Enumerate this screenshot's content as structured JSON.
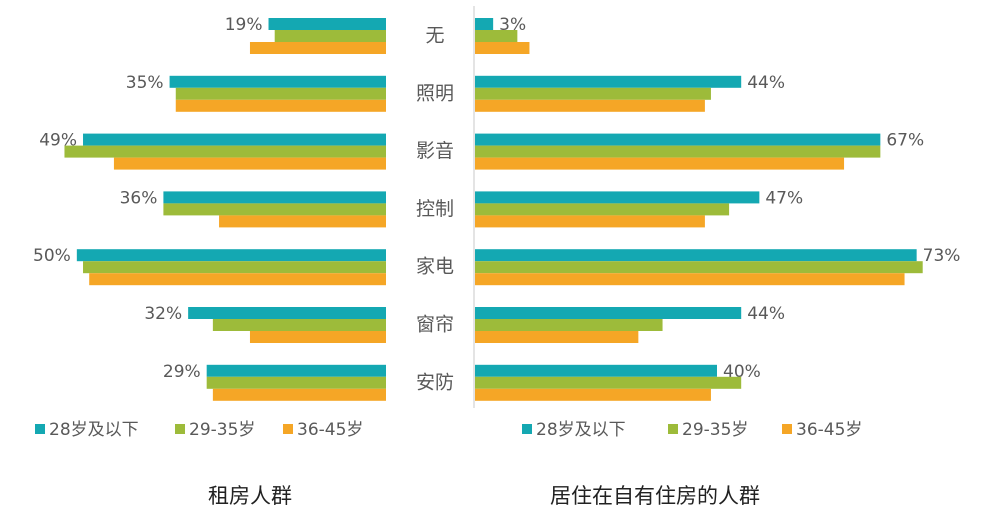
{
  "chart_data": {
    "type": "butterfly-bar",
    "categories": [
      "无",
      "照明",
      "影音",
      "控制",
      "家电",
      "窗帘",
      "安防"
    ],
    "panels": [
      {
        "title": "租房人群",
        "xlim": [
          0,
          60
        ],
        "series": [
          {
            "name": "28岁及以下",
            "color": "#14a8b2",
            "values": [
              19,
              35,
              49,
              36,
              50,
              32,
              29
            ],
            "value_labels": [
              "19%",
              "35%",
              "49%",
              "36%",
              "50%",
              "32%",
              "29%"
            ]
          },
          {
            "name": "29-35岁",
            "color": "#9dbb3a",
            "values": [
              18,
              34,
              52,
              36,
              49,
              28,
              29
            ]
          },
          {
            "name": "36-45岁",
            "color": "#f5a626",
            "values": [
              22,
              34,
              44,
              27,
              48,
              22,
              28
            ]
          }
        ]
      },
      {
        "title": "居住在自有住房的人群",
        "xlim": [
          0,
          80
        ],
        "series": [
          {
            "name": "28岁及以下",
            "color": "#14a8b2",
            "values": [
              3,
              44,
              67,
              47,
              73,
              44,
              40
            ],
            "value_labels": [
              "3%",
              "44%",
              "67%",
              "47%",
              "73%",
              "44%",
              "40%"
            ]
          },
          {
            "name": "29-35岁",
            "color": "#9dbb3a",
            "values": [
              7,
              39,
              67,
              42,
              74,
              31,
              44
            ]
          },
          {
            "name": "36-45岁",
            "color": "#f5a626",
            "values": [
              9,
              38,
              61,
              38,
              71,
              27,
              39
            ]
          }
        ]
      }
    ]
  }
}
